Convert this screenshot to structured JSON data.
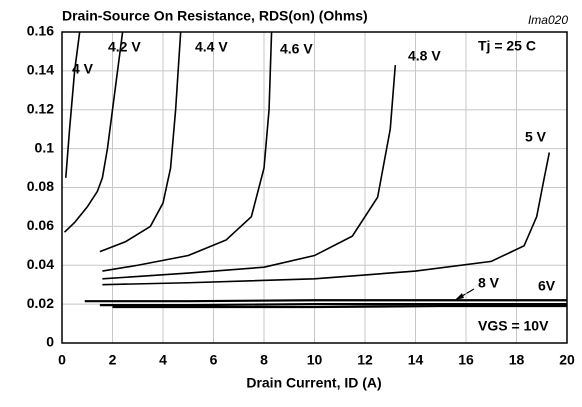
{
  "chart_data": {
    "type": "line",
    "title": "Drain-Source On Resistance, RDS(on) (Ohms)",
    "xlabel": "Drain Current, ID (A)",
    "annotations": [
      "Tj = 25 C",
      "Ima020"
    ],
    "xlim": [
      0,
      20
    ],
    "xticks": [
      0,
      2,
      4,
      6,
      8,
      10,
      12,
      14,
      16,
      18,
      20
    ],
    "ylim": [
      0,
      0.16
    ],
    "yticks": [
      0,
      0.02,
      0.04,
      0.06,
      0.08,
      0.1,
      0.12,
      0.14,
      0.16
    ],
    "grid": true,
    "series": [
      {
        "name": "4 V",
        "color": "#000000",
        "x": [
          0.15,
          0.3,
          0.5,
          0.7
        ],
        "values": [
          0.085,
          0.11,
          0.14,
          0.16
        ]
      },
      {
        "name": "4.2 V",
        "color": "#000000",
        "x": [
          0.1,
          0.5,
          1,
          1.4,
          1.6,
          1.8,
          2,
          2.2,
          2.4
        ],
        "values": [
          0.057,
          0.062,
          0.07,
          0.078,
          0.085,
          0.1,
          0.12,
          0.14,
          0.16
        ]
      },
      {
        "name": "4.4 V",
        "color": "#000000",
        "x": [
          1.5,
          2.5,
          3.5,
          4,
          4.3,
          4.5,
          4.7
        ],
        "values": [
          0.047,
          0.052,
          0.06,
          0.072,
          0.09,
          0.12,
          0.16
        ]
      },
      {
        "name": "4.6 V",
        "color": "#000000",
        "x": [
          1.6,
          3,
          5,
          6.5,
          7.5,
          8,
          8.2,
          8.3
        ],
        "values": [
          0.037,
          0.04,
          0.045,
          0.053,
          0.065,
          0.09,
          0.12,
          0.16
        ]
      },
      {
        "name": "4.8 V",
        "color": "#000000",
        "x": [
          1.6,
          5,
          8,
          10,
          11.5,
          12.5,
          13,
          13.2
        ],
        "values": [
          0.033,
          0.036,
          0.039,
          0.045,
          0.055,
          0.075,
          0.11,
          0.143
        ]
      },
      {
        "name": "5 V",
        "color": "#000000",
        "x": [
          1.6,
          5,
          10,
          14,
          17,
          18.3,
          18.8,
          19.1,
          19.3
        ],
        "values": [
          0.03,
          0.031,
          0.033,
          0.037,
          0.042,
          0.05,
          0.065,
          0.085,
          0.098
        ]
      },
      {
        "name": "6V",
        "color": "#000000",
        "x": [
          0.9,
          5,
          10,
          15,
          20
        ],
        "values": [
          0.0215,
          0.0215,
          0.022,
          0.022,
          0.022
        ]
      },
      {
        "name": "8 V",
        "color": "#000000",
        "x": [
          1.5,
          5,
          10,
          15,
          20
        ],
        "values": [
          0.0195,
          0.0195,
          0.02,
          0.02,
          0.02
        ]
      },
      {
        "name": "VGS = 10V",
        "color": "#000000",
        "x": [
          2,
          5,
          10,
          15,
          20
        ],
        "values": [
          0.0185,
          0.0185,
          0.0185,
          0.019,
          0.019
        ]
      }
    ]
  }
}
